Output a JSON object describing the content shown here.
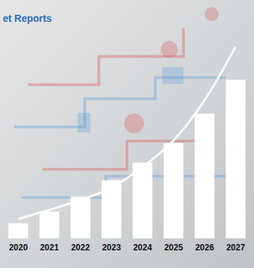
{
  "chart_data": {
    "type": "bar",
    "title": "et Reports",
    "categories": [
      "2020",
      "2021",
      "2022",
      "2023",
      "2024",
      "2025",
      "2026",
      "2027"
    ],
    "series": [
      {
        "type": "bar",
        "color": "#ffffff",
        "values": [
          17,
          30,
          47,
          65,
          85,
          107,
          140,
          178
        ]
      },
      {
        "type": "line",
        "color": "#ffffff",
        "values": [
          22,
          32,
          43,
          57,
          80,
          110,
          155,
          215
        ]
      }
    ],
    "tick_labels": "x",
    "grid": false
  }
}
